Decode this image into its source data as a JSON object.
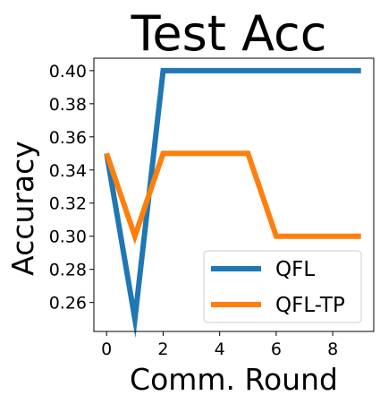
{
  "chart_data": {
    "type": "line",
    "title": "Test Acc",
    "xlabel": "Comm. Round",
    "ylabel": "Accuracy",
    "xlim": [
      -0.45,
      9.45
    ],
    "ylim": [
      0.2425,
      0.4075
    ],
    "xticks": [
      0,
      2,
      4,
      6,
      8
    ],
    "yticks": [
      0.26,
      0.28,
      0.3,
      0.32,
      0.34,
      0.36,
      0.38,
      0.4
    ],
    "ytick_labels": [
      "0.26",
      "0.28",
      "0.30",
      "0.32",
      "0.34",
      "0.36",
      "0.38",
      "0.40"
    ],
    "xtick_labels": [
      "0",
      "2",
      "4",
      "6",
      "8"
    ],
    "grid": false,
    "legend_position": "lower-right",
    "x": [
      0,
      1,
      2,
      3,
      4,
      5,
      6,
      7,
      8,
      9
    ],
    "series": [
      {
        "name": "QFL",
        "color": "#1f77b4",
        "values": [
          0.35,
          0.25,
          0.4,
          0.4,
          0.4,
          0.4,
          0.4,
          0.4,
          0.4,
          0.4
        ]
      },
      {
        "name": "QFL-TP",
        "color": "#ff7f0e",
        "values": [
          0.35,
          0.3,
          0.35,
          0.35,
          0.35,
          0.35,
          0.3,
          0.3,
          0.3,
          0.3
        ]
      }
    ]
  }
}
